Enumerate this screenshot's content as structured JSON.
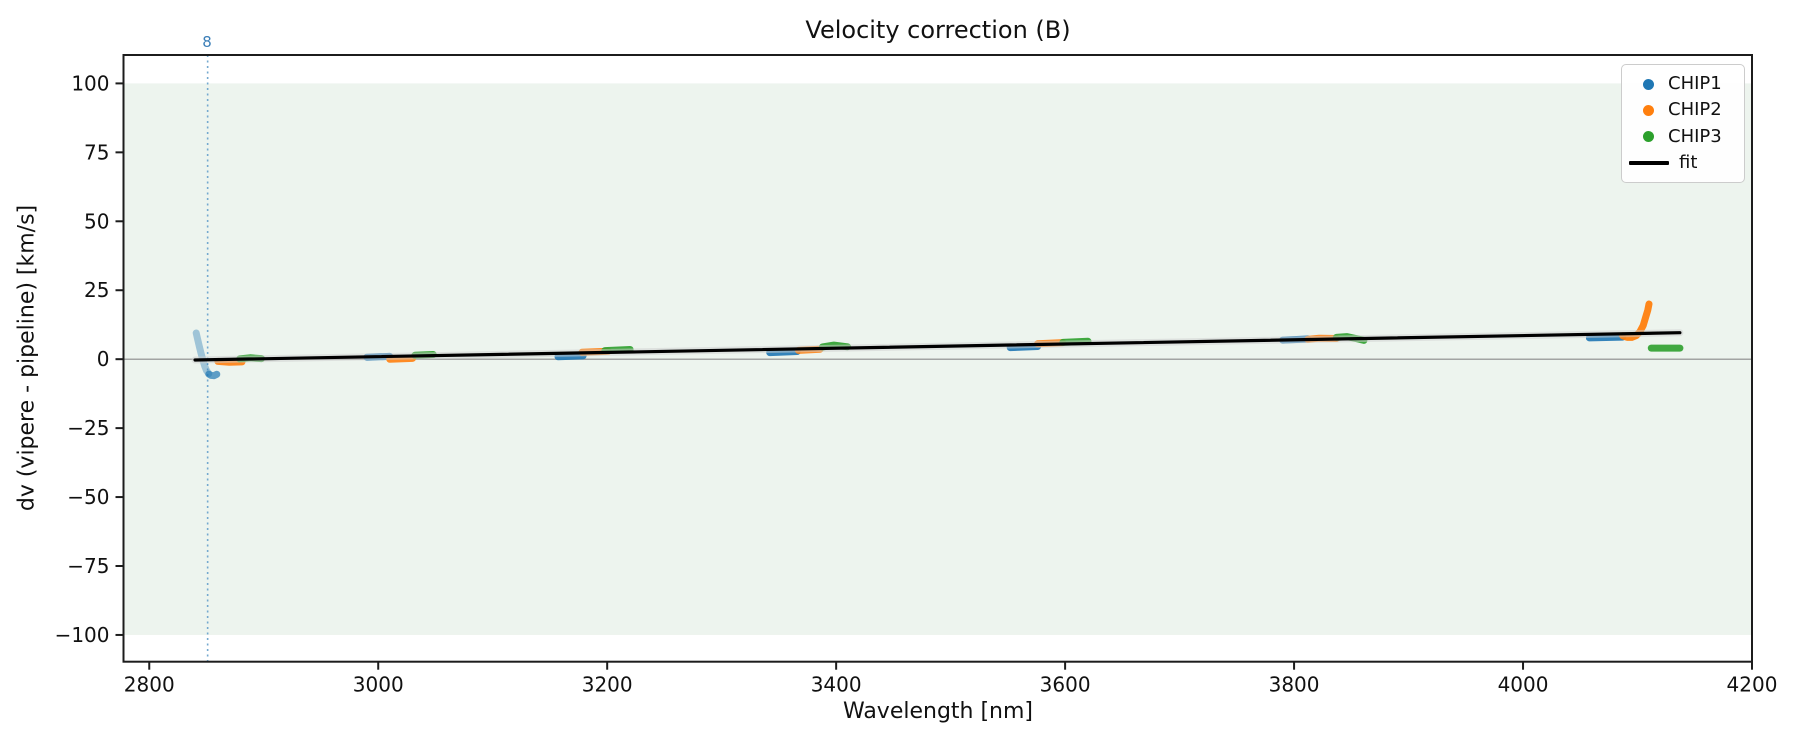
{
  "chart_data": {
    "type": "scatter",
    "title": "Velocity correction (B)",
    "xlabel": "Wavelength [nm]",
    "ylabel": "dv (vipere - pipeline) [km/s]",
    "xlim": [
      2777.5,
      4200
    ],
    "ylim": [
      -109.7,
      110.3
    ],
    "grid": false,
    "background_color": "#ffffff",
    "shaded_band": {
      "ymin": -100,
      "ymax": 100,
      "color": "#edf4ee"
    },
    "zero_line": {
      "y": 0,
      "color": "#8a8a8a"
    },
    "order_line": {
      "x": 2851,
      "label": "8",
      "line_color": "#74a9cf",
      "label_color": "#3c7fb8"
    },
    "x_ticks": {
      "values": [
        2800,
        3000,
        3200,
        3400,
        3600,
        3800,
        4000,
        4200
      ],
      "labels": [
        "2800",
        "3000",
        "3200",
        "3400",
        "3600",
        "3800",
        "4000",
        "4200"
      ]
    },
    "y_ticks": {
      "values": [
        100,
        75,
        50,
        25,
        0,
        -25,
        -50,
        -75,
        -100
      ],
      "labels": [
        "100",
        "75",
        "50",
        "25",
        "0",
        "−25",
        "−50",
        "−75",
        "−100"
      ]
    },
    "fit": {
      "name": "fit",
      "color": "#000000",
      "underlay_color": "#cfcfcf",
      "x": [
        2840,
        4137
      ],
      "y": [
        -0.3,
        9.6
      ]
    },
    "series": [
      {
        "name": "CHIP1",
        "color": "#1f77b4",
        "segments": [
          {
            "opacity": 0.38,
            "points": [
              [
                2841,
                9.5
              ],
              [
                2842.5,
                6.8
              ],
              [
                2844,
                4.2
              ],
              [
                2845.5,
                1.8
              ],
              [
                2847,
                -0.6
              ],
              [
                2848.5,
                -2.6
              ],
              [
                2850,
                -4.1
              ],
              [
                2852,
                -5.3
              ]
            ]
          },
          {
            "opacity": 0.7,
            "points": [
              [
                2852,
                -5.4
              ],
              [
                2854,
                -5.9
              ],
              [
                2856.5,
                -6.0
              ],
              [
                2859,
                -5.5
              ]
            ]
          },
          {
            "opacity": 0.9,
            "points": [
              [
                2990,
                0.7
              ],
              [
                3010,
                1.0
              ]
            ]
          },
          {
            "opacity": 0.9,
            "points": [
              [
                3157,
                0.9
              ],
              [
                3179,
                1.2
              ]
            ]
          },
          {
            "opacity": 0.9,
            "points": [
              [
                3342,
                2.4
              ],
              [
                3366,
                2.8
              ]
            ]
          },
          {
            "opacity": 0.9,
            "points": [
              [
                3552,
                4.2
              ],
              [
                3576,
                4.6
              ]
            ]
          },
          {
            "opacity": 0.9,
            "points": [
              [
                3790,
                6.9
              ],
              [
                3812,
                7.3
              ]
            ]
          },
          {
            "opacity": 0.9,
            "points": [
              [
                4058,
                7.7
              ],
              [
                4087,
                8.0
              ]
            ]
          }
        ]
      },
      {
        "name": "CHIP2",
        "color": "#ff7f0e",
        "segments": [
          {
            "opacity": 0.9,
            "points": [
              [
                2860,
                -0.8
              ],
              [
                2870,
                -1.1
              ],
              [
                2881,
                -1.0
              ]
            ]
          },
          {
            "opacity": 0.9,
            "points": [
              [
                3010,
                0.0
              ],
              [
                3030,
                0.3
              ]
            ]
          },
          {
            "opacity": 0.9,
            "points": [
              [
                3178,
                2.5
              ],
              [
                3201,
                2.9
              ]
            ]
          },
          {
            "opacity": 0.9,
            "points": [
              [
                3367,
                3.2
              ],
              [
                3386,
                3.6
              ]
            ]
          },
          {
            "opacity": 0.9,
            "points": [
              [
                3576,
                5.6
              ],
              [
                3598,
                6.0
              ]
            ]
          },
          {
            "opacity": 0.9,
            "points": [
              [
                3812,
                7.2
              ],
              [
                3822,
                7.6
              ],
              [
                3837,
                7.5
              ]
            ]
          },
          {
            "opacity": 0.95,
            "points": [
              [
                4087,
                8.5
              ],
              [
                4091,
                7.9
              ],
              [
                4095,
                7.9
              ],
              [
                4099,
                8.6
              ],
              [
                4102,
                9.9
              ],
              [
                4105,
                12.2
              ],
              [
                4107,
                15.0
              ],
              [
                4109,
                17.8
              ],
              [
                4110,
                20.0
              ]
            ]
          }
        ]
      },
      {
        "name": "CHIP3",
        "color": "#2ca02c",
        "segments": [
          {
            "opacity": 0.9,
            "points": [
              [
                2879,
                0.1
              ],
              [
                2888,
                0.5
              ],
              [
                2898,
                0.2
              ]
            ]
          },
          {
            "opacity": 0.9,
            "points": [
              [
                3032,
                1.4
              ],
              [
                3048,
                1.7
              ]
            ]
          },
          {
            "opacity": 0.9,
            "points": [
              [
                3198,
                3.1
              ],
              [
                3220,
                3.5
              ]
            ]
          },
          {
            "opacity": 0.9,
            "points": [
              [
                3388,
                4.4
              ],
              [
                3398,
                5.1
              ],
              [
                3410,
                4.5
              ]
            ]
          },
          {
            "opacity": 0.9,
            "points": [
              [
                3598,
                6.1
              ],
              [
                3620,
                6.5
              ]
            ]
          },
          {
            "opacity": 0.9,
            "points": [
              [
                3837,
                7.9
              ],
              [
                3846,
                8.2
              ],
              [
                3854,
                7.5
              ],
              [
                3861,
                6.8
              ]
            ]
          },
          {
            "opacity": 0.9,
            "points": [
              [
                4112,
                4.0
              ],
              [
                4137,
                4.0
              ]
            ]
          }
        ]
      }
    ],
    "legend": {
      "position": "upper right",
      "items": [
        {
          "label": "CHIP1",
          "color": "#1f77b4",
          "marker": "dot"
        },
        {
          "label": "CHIP2",
          "color": "#ff7f0e",
          "marker": "dot"
        },
        {
          "label": "CHIP3",
          "color": "#2ca02c",
          "marker": "dot"
        },
        {
          "label": "fit",
          "color": "#000000",
          "marker": "line"
        }
      ]
    }
  }
}
